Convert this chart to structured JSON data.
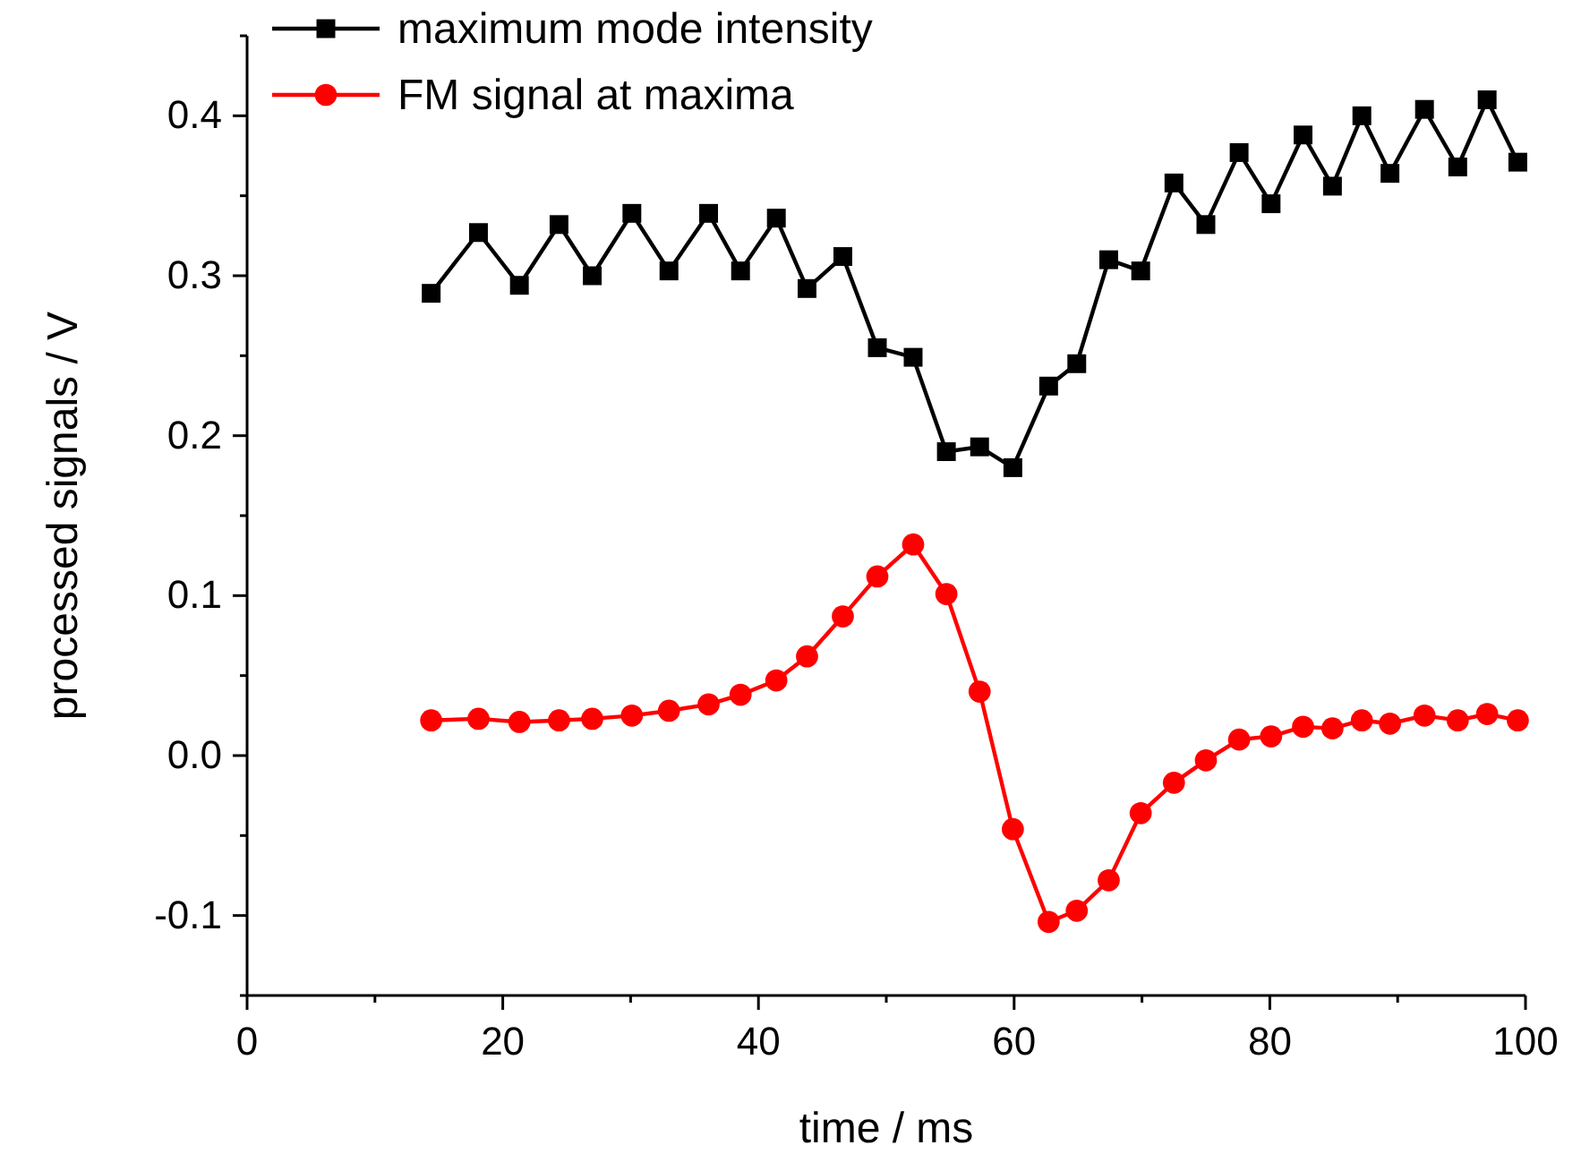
{
  "chart_data": {
    "type": "line",
    "xlabel": "time / ms",
    "ylabel": "processed signals / V",
    "x": [
      14.4,
      18.1,
      21.3,
      24.4,
      27.0,
      30.1,
      33.0,
      36.1,
      38.6,
      41.4,
      43.8,
      46.6,
      49.3,
      52.1,
      54.7,
      57.3,
      59.9,
      62.7,
      64.9,
      67.4,
      69.9,
      72.5,
      75.0,
      77.6,
      80.1,
      82.6,
      84.9,
      87.2,
      89.4,
      92.1,
      94.7,
      97.0,
      99.4
    ],
    "series": [
      {
        "name": "maximum mode intensity",
        "color": "#000000",
        "marker": "square",
        "values": [
          0.289,
          0.327,
          0.294,
          0.332,
          0.3,
          0.339,
          0.303,
          0.339,
          0.303,
          0.336,
          0.292,
          0.312,
          0.255,
          0.249,
          0.19,
          0.193,
          0.18,
          0.231,
          0.245,
          0.31,
          0.303,
          0.358,
          0.332,
          0.377,
          0.345,
          0.388,
          0.356,
          0.4,
          0.364,
          0.404,
          0.368,
          0.41,
          0.371
        ]
      },
      {
        "name": "FM signal at maxima",
        "color": "#ff0000",
        "marker": "circle",
        "values": [
          0.022,
          0.023,
          0.021,
          0.022,
          0.023,
          0.025,
          0.028,
          0.032,
          0.038,
          0.047,
          0.062,
          0.087,
          0.112,
          0.132,
          0.101,
          0.04,
          -0.046,
          -0.104,
          -0.097,
          -0.078,
          -0.036,
          -0.017,
          -0.003,
          0.01,
          0.012,
          0.018,
          0.017,
          0.022,
          0.02,
          0.025,
          0.022,
          0.026,
          0.022
        ]
      }
    ],
    "xlim": [
      0,
      100
    ],
    "xticks": [
      0,
      {
        "value": 10,
        "label": null
      },
      20,
      {
        "value": 30,
        "label": null
      },
      40,
      {
        "value": 50,
        "label": null
      },
      60,
      {
        "value": 70,
        "label": null
      },
      80,
      {
        "value": 90,
        "label": null
      },
      100
    ],
    "ylim": [
      -0.15,
      0.45
    ],
    "yticks": [
      {
        "value": -0.15,
        "label": null
      },
      -0.1,
      {
        "value": -0.05,
        "label": null
      },
      {
        "value": 0,
        "label": "0.0"
      },
      {
        "value": 0.05,
        "label": null
      },
      0.1,
      {
        "value": 0.15,
        "label": null
      },
      0.2,
      {
        "value": 0.25,
        "label": null
      },
      0.3,
      {
        "value": 0.35,
        "label": null
      },
      0.4,
      {
        "value": 0.45,
        "label": null
      }
    ],
    "legend": "top left",
    "grid": false,
    "line_style": "solid"
  }
}
